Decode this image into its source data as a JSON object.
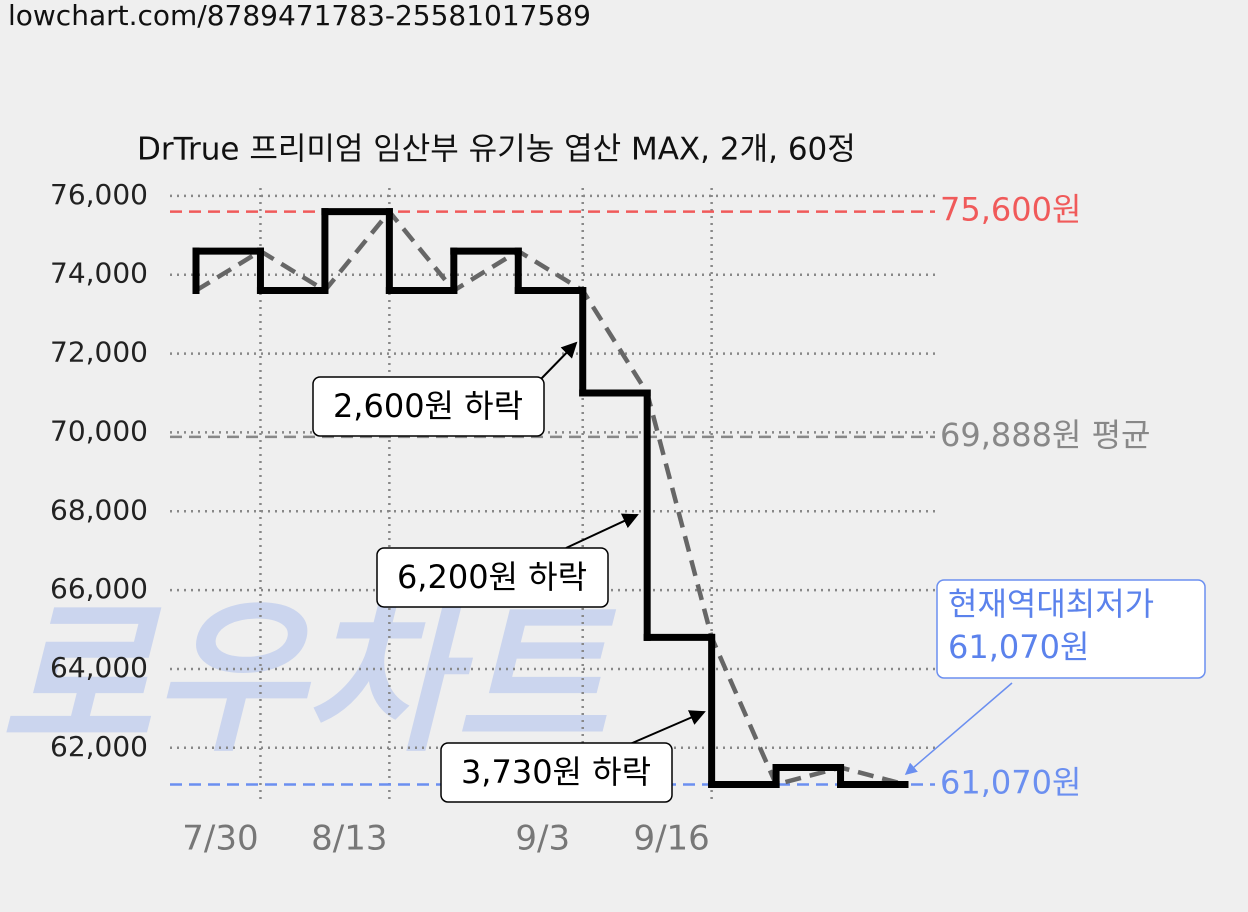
{
  "page_url": "lowchart.com/8789471783-25581017589",
  "chart_data": {
    "type": "step-line",
    "title": "DrTrue 프리미엄 임산부 유기농 엽산 MAX, 2개, 60정",
    "watermark": "로우차트",
    "categories": [
      null,
      "7/30",
      null,
      "8/13",
      null,
      null,
      "9/3",
      null,
      "9/16",
      null,
      null,
      null
    ],
    "values": [
      73600,
      74600,
      73600,
      75600,
      73600,
      74600,
      73600,
      71000,
      64800,
      61070,
      61500,
      61070
    ],
    "color": "#000000",
    "trend_color": "#666666",
    "ylim": [
      60600,
      76200
    ],
    "yticks": [
      {
        "value": 62000,
        "label": "62,000"
      },
      {
        "value": 64000,
        "label": "64,000"
      },
      {
        "value": 66000,
        "label": "66,000"
      },
      {
        "value": 68000,
        "label": "68,000"
      },
      {
        "value": 70000,
        "label": "70,000"
      },
      {
        "value": 72000,
        "label": "72,000"
      },
      {
        "value": 74000,
        "label": "74,000"
      },
      {
        "value": 76000,
        "label": "76,000"
      }
    ],
    "grid": true,
    "reference_lines": [
      {
        "value": 75600,
        "label": "75,600원",
        "color": "#f05a5a"
      },
      {
        "value": 69888,
        "label": "69,888원 평균",
        "color": "#888888"
      },
      {
        "value": 61070,
        "label": "61,070원",
        "color": "#6b8ff0"
      }
    ],
    "annotations": [
      {
        "text": "2,600원 하락"
      },
      {
        "text": "6,200원 하락"
      },
      {
        "text": "3,730원 하락"
      },
      {
        "lines": [
          "현재역대최저가",
          "61,070원"
        ]
      }
    ]
  }
}
